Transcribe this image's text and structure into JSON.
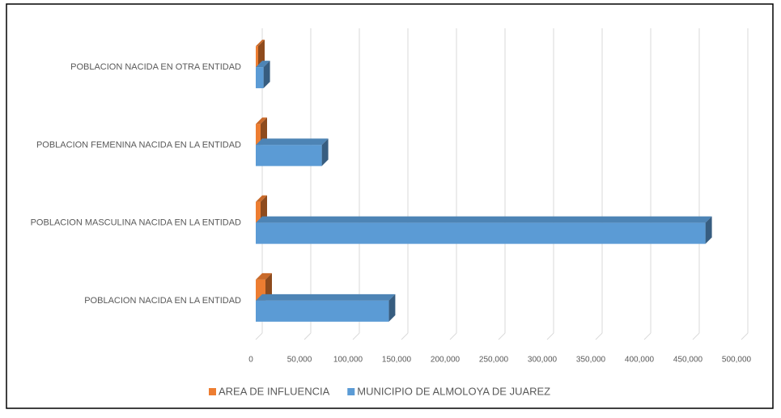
{
  "chart_data": {
    "type": "bar3d_horizontal",
    "categories": [
      "POBLACION NACIDA EN LA ENTIDAD",
      "POBLACION MASCULINA NACIDA EN LA ENTIDAD",
      "POBLACION FEMENINA NACIDA EN LA ENTIDAD",
      "POBLACION NACIDA EN OTRA ENTIDAD"
    ],
    "series": [
      {
        "name": "AREA DE INFLUENCIA",
        "color": "#ed7d31",
        "values": [
          10000,
          5000,
          5000,
          2500
        ]
      },
      {
        "name": "MUNICIPIO DE ALMOLOYA DE JUAREZ",
        "color": "#5b9bd5",
        "values": [
          137000,
          463000,
          68000,
          8000
        ]
      }
    ],
    "xlim": [
      0,
      500000
    ],
    "xticks": [
      0,
      {
        "value": 50000,
        "label": "50,000"
      },
      {
        "value": 100000,
        "label": "100,000"
      },
      {
        "value": 150000,
        "label": "150,000"
      },
      {
        "value": 200000,
        "label": "200,000"
      },
      {
        "value": 250000,
        "label": "250,000"
      },
      {
        "value": 300000,
        "label": "300,000"
      },
      {
        "value": 350000,
        "label": "350,000"
      },
      {
        "value": 400000,
        "label": "400,000"
      },
      {
        "value": 450000,
        "label": "450,000"
      },
      {
        "value": 500000,
        "label": "500,000"
      }
    ],
    "grid": true,
    "legend": "bottom"
  }
}
